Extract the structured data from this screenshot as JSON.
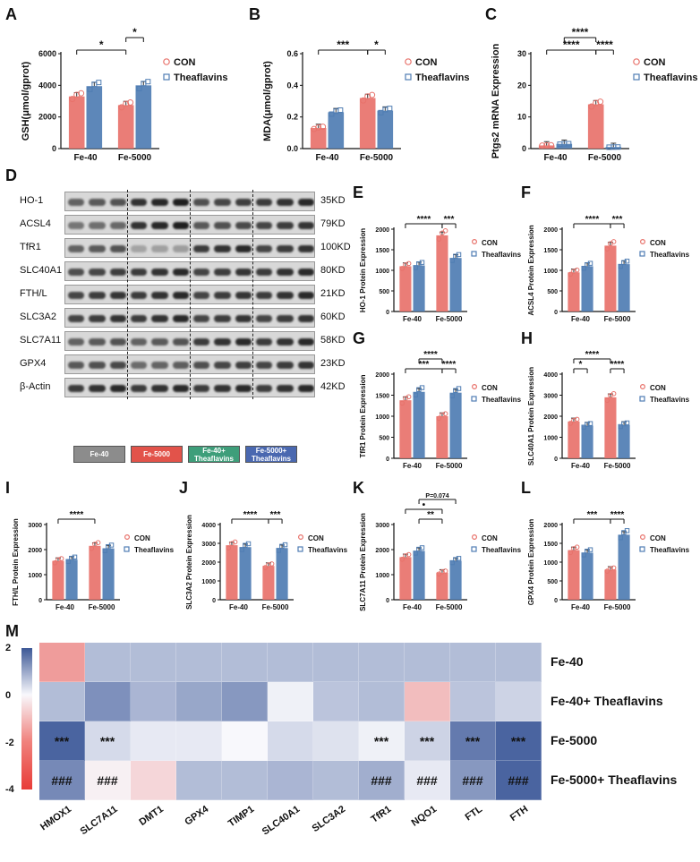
{
  "panel_letters": {
    "A": "A",
    "B": "B",
    "C": "C",
    "D": "D",
    "E": "E",
    "F": "F",
    "G": "G",
    "H": "H",
    "I": "I",
    "J": "J",
    "K": "K",
    "L": "L",
    "M": "M"
  },
  "colors": {
    "con": "#e8726b",
    "tf": "#4f7db3",
    "con_point": "#e8726b",
    "tf_point": "#4f7db3"
  },
  "legend": {
    "con": "CON",
    "tf": "Theaflavins"
  },
  "chart_data": [
    {
      "panel": "A",
      "type": "bar",
      "categories": [
        "Fe-40",
        "Fe-5000"
      ],
      "ylabel": "GSH(μmol/gprot)",
      "ylim": [
        0,
        6000
      ],
      "yticks": [
        "0",
        "2000",
        "4000",
        "6000"
      ],
      "series": [
        {
          "name": "CON",
          "values": [
            3300,
            2750
          ]
        },
        {
          "name": "Theaflavins",
          "values": [
            3950,
            4000
          ]
        }
      ],
      "sig": [
        {
          "label": "*",
          "from": 0,
          "to": 2,
          "level": 1
        },
        {
          "label": "*",
          "from": 2,
          "to": 3,
          "level": 2
        }
      ]
    },
    {
      "panel": "B",
      "type": "bar",
      "categories": [
        "Fe-40",
        "Fe-5000"
      ],
      "ylabel": "MDA(μmol/gprot)",
      "ylim": [
        0,
        0.6
      ],
      "yticks": [
        "0.0",
        "0.2",
        "0.4",
        "0.6"
      ],
      "series": [
        {
          "name": "CON",
          "values": [
            0.13,
            0.32
          ]
        },
        {
          "name": "Theaflavins",
          "values": [
            0.23,
            0.24
          ]
        }
      ],
      "sig": [
        {
          "label": "***",
          "from": 0,
          "to": 2,
          "level": 1
        },
        {
          "label": "*",
          "from": 2,
          "to": 3,
          "level": 1
        }
      ]
    },
    {
      "panel": "C",
      "type": "bar",
      "categories": [
        "Fe-40",
        "Fe-5000"
      ],
      "ylabel": "Ptgs2 mRNA Expression",
      "ylim": [
        0,
        30
      ],
      "yticks": [
        "0",
        "10",
        "20",
        "30"
      ],
      "series": [
        {
          "name": "CON",
          "values": [
            1,
            14
          ]
        },
        {
          "name": "Theaflavins",
          "values": [
            1.5,
            0.5
          ]
        }
      ],
      "sig": [
        {
          "label": "****",
          "from": 0,
          "to": 2,
          "level": 1
        },
        {
          "label": "****",
          "from": 2,
          "to": 3,
          "level": 1
        },
        {
          "label": "****",
          "from": 1,
          "to": 2,
          "level": 2
        }
      ]
    },
    {
      "panel": "E",
      "type": "bar",
      "categories": [
        "Fe-40",
        "Fe-5000"
      ],
      "ylabel": "HO-1 Protein Expression",
      "ylim": [
        0,
        2000
      ],
      "yticks": [
        "0",
        "500",
        "1000",
        "1500",
        "2000"
      ],
      "series": [
        {
          "name": "CON",
          "values": [
            1100,
            1850
          ]
        },
        {
          "name": "Theaflavins",
          "values": [
            1120,
            1300
          ]
        }
      ],
      "sig": [
        {
          "label": "****",
          "from": 0,
          "to": 2,
          "level": 1
        },
        {
          "label": "***",
          "from": 2,
          "to": 3,
          "level": 1
        }
      ]
    },
    {
      "panel": "F",
      "type": "bar",
      "categories": [
        "Fe-40",
        "Fe-5000"
      ],
      "ylabel": "ACSL4 Protein Expression",
      "ylim": [
        0,
        2000
      ],
      "yticks": [
        "0",
        "500",
        "1000",
        "1500",
        "2000"
      ],
      "series": [
        {
          "name": "CON",
          "values": [
            950,
            1600
          ]
        },
        {
          "name": "Theaflavins",
          "values": [
            1100,
            1150
          ]
        }
      ],
      "sig": [
        {
          "label": "****",
          "from": 0,
          "to": 2,
          "level": 1
        },
        {
          "label": "***",
          "from": 2,
          "to": 3,
          "level": 1
        }
      ]
    },
    {
      "panel": "G",
      "type": "bar",
      "categories": [
        "Fe-40",
        "Fe-5000"
      ],
      "ylabel": "TfR1 Protein Expression",
      "ylim": [
        0,
        2000
      ],
      "yticks": [
        "0",
        "500",
        "1000",
        "1500",
        "2000"
      ],
      "series": [
        {
          "name": "CON",
          "values": [
            1380,
            1000
          ]
        },
        {
          "name": "Theaflavins",
          "values": [
            1580,
            1560
          ]
        }
      ],
      "sig": [
        {
          "label": "***",
          "from": 0,
          "to": 2,
          "level": 1
        },
        {
          "label": "****",
          "from": 2,
          "to": 3,
          "level": 1
        },
        {
          "label": "****",
          "from": 1,
          "to": 2,
          "level": 2
        }
      ]
    },
    {
      "panel": "H",
      "type": "bar",
      "categories": [
        "Fe-40",
        "Fe-5000"
      ],
      "ylabel": "SLC40A1 Protein Expression",
      "ylim": [
        0,
        4000
      ],
      "yticks": [
        "0",
        "1000",
        "2000",
        "3000",
        "4000"
      ],
      "series": [
        {
          "name": "CON",
          "values": [
            1750,
            2900
          ]
        },
        {
          "name": "Theaflavins",
          "values": [
            1550,
            1580
          ]
        }
      ],
      "sig": [
        {
          "label": "*",
          "from": 0,
          "to": 1,
          "level": 1
        },
        {
          "label": "****",
          "from": 2,
          "to": 3,
          "level": 1
        },
        {
          "label": "****",
          "from": 0,
          "to": 2,
          "level": 2
        }
      ]
    },
    {
      "panel": "I",
      "type": "bar",
      "categories": [
        "Fe-40",
        "Fe-5000"
      ],
      "ylabel": "FTH/L Protein Expression",
      "ylim": [
        0,
        3000
      ],
      "yticks": [
        "0",
        "1000",
        "2000",
        "3000"
      ],
      "series": [
        {
          "name": "CON",
          "values": [
            1550,
            2150
          ]
        },
        {
          "name": "Theaflavins",
          "values": [
            1600,
            2050
          ]
        }
      ],
      "sig": [
        {
          "label": "****",
          "from": 0,
          "to": 2,
          "level": 1
        }
      ]
    },
    {
      "panel": "J",
      "type": "bar",
      "categories": [
        "Fe-40",
        "Fe-5000"
      ],
      "ylabel": "SLC3A2 Protein Expression",
      "ylim": [
        0,
        4000
      ],
      "yticks": [
        "0",
        "1000",
        "2000",
        "3000",
        "4000"
      ],
      "series": [
        {
          "name": "CON",
          "values": [
            2900,
            1800
          ]
        },
        {
          "name": "Theaflavins",
          "values": [
            2800,
            2750
          ]
        }
      ],
      "sig": [
        {
          "label": "****",
          "from": 0,
          "to": 2,
          "level": 1
        },
        {
          "label": "***",
          "from": 2,
          "to": 3,
          "level": 1
        }
      ]
    },
    {
      "panel": "K",
      "type": "bar",
      "categories": [
        "Fe-40",
        "Fe-5000"
      ],
      "ylabel": "SLC7A11 Protein Expression",
      "ylim": [
        0,
        3000
      ],
      "yticks": [
        "0",
        "1000",
        "2000",
        "3000"
      ],
      "series": [
        {
          "name": "CON",
          "values": [
            1700,
            1080
          ]
        },
        {
          "name": "Theaflavins",
          "values": [
            1950,
            1550
          ]
        }
      ],
      "sig": [
        {
          "label": "**",
          "from": 1,
          "to": 2,
          "level": 1
        },
        {
          "label": "•",
          "from": 0,
          "to": 2,
          "level": 2
        },
        {
          "label": "P=0.074",
          "from": 1,
          "to": 3,
          "level": 3
        }
      ]
    },
    {
      "panel": "L",
      "type": "bar",
      "categories": [
        "Fe-40",
        "Fe-5000"
      ],
      "ylabel": "GPX4 Protein Expression",
      "ylim": [
        0,
        2000
      ],
      "yticks": [
        "0",
        "500",
        "1000",
        "1500",
        "2000"
      ],
      "series": [
        {
          "name": "CON",
          "values": [
            1320,
            800
          ]
        },
        {
          "name": "Theaflavins",
          "values": [
            1250,
            1730
          ]
        }
      ],
      "sig": [
        {
          "label": "***",
          "from": 0,
          "to": 2,
          "level": 1
        },
        {
          "label": "****",
          "from": 2,
          "to": 3,
          "level": 1
        }
      ]
    },
    {
      "panel": "M",
      "type": "heatmap",
      "rows": [
        "Fe-40",
        "Fe-40+ Theaflavins",
        "Fe-5000",
        "Fe-5000+ Theaflavins"
      ],
      "columns": [
        "HMOX1",
        "SLC7A11",
        "DMT1",
        "GPX4",
        "TIMP1",
        "SLC40A1",
        "SLC3A2",
        "TfR1",
        "NQO1",
        "FTL",
        "FTH"
      ],
      "values": [
        [
          -2.2,
          0.8,
          0.8,
          0.8,
          0.8,
          0.8,
          0.8,
          0.8,
          0.8,
          0.8,
          0.8
        ],
        [
          0.8,
          1.4,
          0.9,
          1.1,
          1.3,
          0.1,
          0.7,
          0.8,
          -1.4,
          0.7,
          0.5
        ],
        [
          2.0,
          0.4,
          0.2,
          0.2,
          0.0,
          0.4,
          0.3,
          0.1,
          0.5,
          1.7,
          2.0
        ],
        [
          1.5,
          -0.2,
          -0.8,
          0.8,
          0.8,
          0.9,
          0.8,
          1.0,
          0.2,
          1.3,
          2.0
        ]
      ],
      "annotations": [
        [
          "",
          "",
          "",
          "",
          "",
          "",
          "",
          "",
          "",
          "",
          ""
        ],
        [
          "",
          "",
          "",
          "",
          "",
          "",
          "",
          "",
          "",
          "",
          ""
        ],
        [
          "***",
          "***",
          "",
          "",
          "",
          "",
          "",
          "***",
          "***",
          "***",
          "***"
        ],
        [
          "###",
          "###",
          "",
          "",
          "",
          "",
          "",
          "###",
          "###",
          "###",
          "###"
        ]
      ],
      "colorbar": {
        "min": -4,
        "max": 2,
        "ticks": [
          "2",
          "0",
          "-2",
          "-4"
        ]
      }
    }
  ],
  "blot": {
    "proteins": [
      {
        "name": "HO-1",
        "size": "35KD"
      },
      {
        "name": "ACSL4",
        "size": "79KD"
      },
      {
        "name": "TfR1",
        "size": "100KD"
      },
      {
        "name": "SLC40A1",
        "size": "80KD"
      },
      {
        "name": "FTH/L",
        "size": "21KD"
      },
      {
        "name": "SLC3A2",
        "size": "60KD"
      },
      {
        "name": "SLC7A11",
        "size": "58KD"
      },
      {
        "name": "GPX4",
        "size": "23KD"
      },
      {
        "name": "β-Actin",
        "size": "42KD"
      }
    ],
    "groups": [
      {
        "label": "Fe-40",
        "color": "#8c8c8c"
      },
      {
        "label": "Fe-5000",
        "color": "#e2534a"
      },
      {
        "label": "Fe-40+\nTheaflavins",
        "color": "#3e9e7a"
      },
      {
        "label": "Fe-5000+\nTheaflavins",
        "color": "#4a68b0"
      }
    ]
  }
}
